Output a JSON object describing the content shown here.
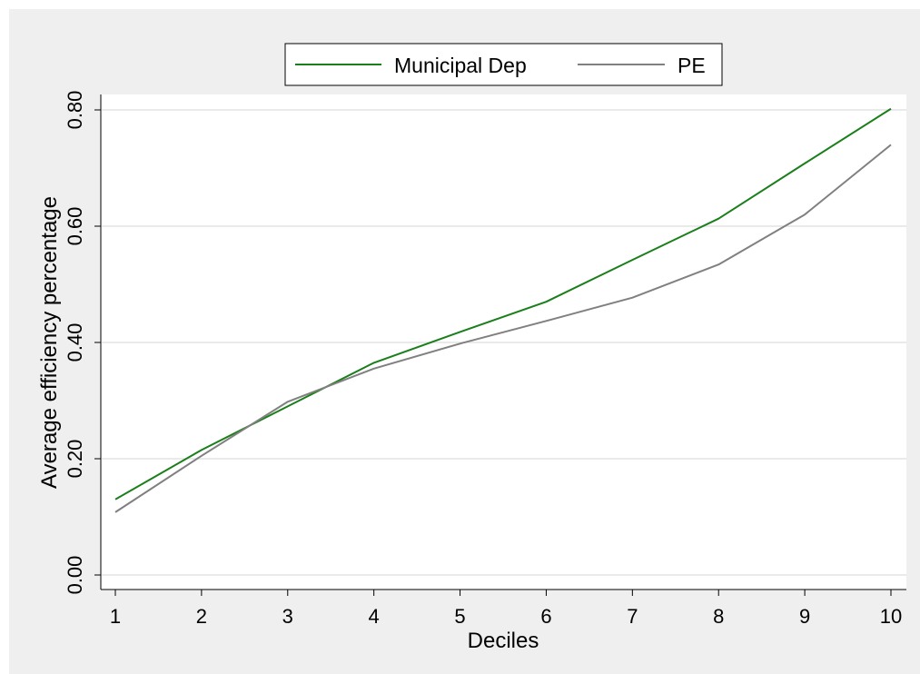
{
  "chart_data": {
    "type": "line",
    "xlabel": "Deciles",
    "ylabel": "Average efficiency percentage",
    "x": [
      1,
      2,
      3,
      4,
      5,
      6,
      7,
      8,
      9,
      10
    ],
    "xticks": [
      "1",
      "2",
      "3",
      "4",
      "5",
      "6",
      "7",
      "8",
      "9",
      "10"
    ],
    "yticks": [
      "0.00",
      "0.20",
      "0.40",
      "0.60",
      "0.80"
    ],
    "ytick_values": [
      0,
      0.2,
      0.4,
      0.6,
      0.8
    ],
    "xlim": [
      1,
      10
    ],
    "ylim": [
      0,
      0.8
    ],
    "grid": true,
    "legend_position": "top-center",
    "series": [
      {
        "name": "Municipal Dep",
        "color": "#1a7f1a",
        "values": [
          0.13,
          0.215,
          0.29,
          0.365,
          0.418,
          0.47,
          0.542,
          0.613,
          0.708,
          0.802
        ]
      },
      {
        "name": "PE",
        "color": "#808080",
        "values": [
          0.108,
          0.205,
          0.298,
          0.355,
          0.398,
          0.437,
          0.477,
          0.534,
          0.62,
          0.74
        ]
      }
    ]
  }
}
